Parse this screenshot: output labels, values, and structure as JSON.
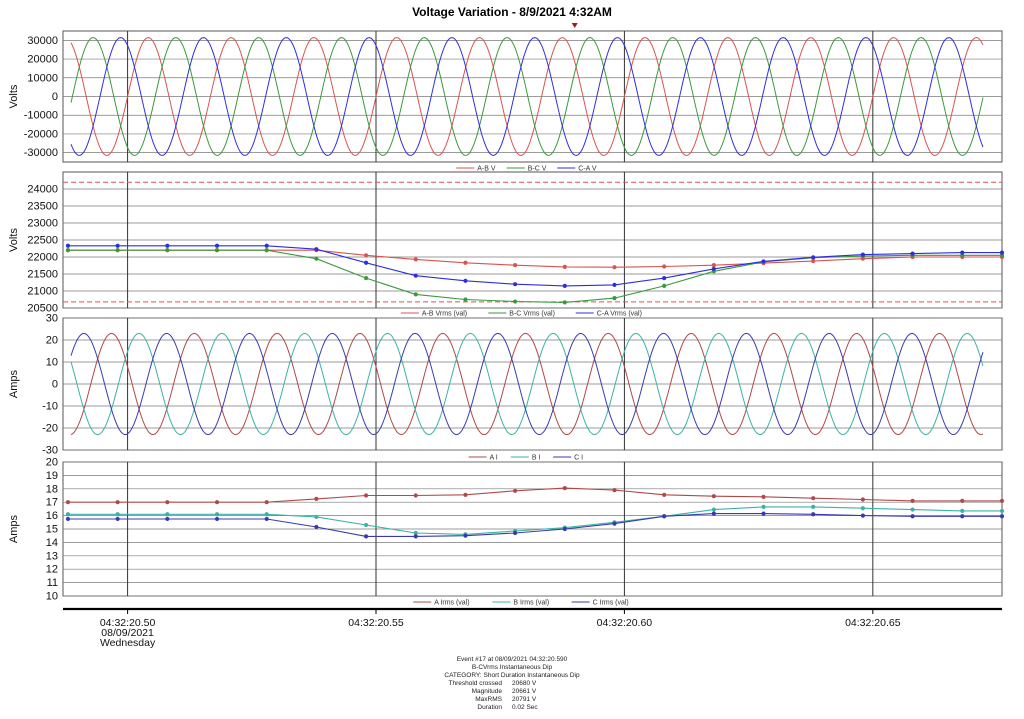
{
  "title": "Voltage Variation - 8/9/2021 4:32AM",
  "colors": {
    "red": "#d9534f",
    "green": "#3a9a3a",
    "blue": "#2e2ee0",
    "teal": "#3bb3a3",
    "darkred": "#b04848",
    "darkblue": "#3a3ab0"
  },
  "time_axis": {
    "range": [
      20.487,
      20.676
    ],
    "ticks": [
      {
        "t": 20.5,
        "lines": [
          "04:32:20.50",
          "08/09/2021",
          "Wednesday"
        ]
      },
      {
        "t": 20.55,
        "lines": [
          "04:32:20.55"
        ]
      },
      {
        "t": 20.6,
        "lines": [
          "04:32:20.60"
        ]
      },
      {
        "t": 20.65,
        "lines": [
          "04:32:20.65"
        ]
      }
    ],
    "trigger_t": 20.59
  },
  "chart_data": [
    {
      "type": "line",
      "ylabel": "Volts",
      "ylim": [
        -35000,
        35000
      ],
      "yticks": [
        -30000,
        -20000,
        -10000,
        0,
        10000,
        20000,
        30000
      ],
      "waveform": {
        "amplitude": 31500,
        "frequency_hz": 60
      },
      "series": [
        {
          "name": "A-B V",
          "color": "red",
          "phase_deg": 0
        },
        {
          "name": "B-C V",
          "color": "green",
          "phase_deg": -120
        },
        {
          "name": "C-A V",
          "color": "blue",
          "phase_deg": 120
        }
      ]
    },
    {
      "type": "line",
      "ylabel": "Volts",
      "ylim": [
        20500,
        24500
      ],
      "yticks": [
        20500,
        21000,
        21500,
        22000,
        22500,
        23000,
        23500,
        24000
      ],
      "thresholds": [
        24200,
        20680
      ],
      "x": [
        20.488,
        20.498,
        20.508,
        20.518,
        20.528,
        20.538,
        20.548,
        20.558,
        20.568,
        20.578,
        20.588,
        20.598,
        20.608,
        20.618,
        20.628,
        20.638,
        20.648,
        20.658,
        20.668,
        20.676
      ],
      "series": [
        {
          "name": "A-B Vrms (val)",
          "color": "red",
          "values": [
            22200,
            22200,
            22200,
            22200,
            22200,
            22200,
            22050,
            21930,
            21830,
            21760,
            21710,
            21700,
            21720,
            21760,
            21820,
            21880,
            21950,
            22000,
            22000,
            22000
          ]
        },
        {
          "name": "B-C Vrms (val)",
          "color": "green",
          "values": [
            22200,
            22200,
            22200,
            22200,
            22200,
            21950,
            21380,
            20900,
            20750,
            20690,
            20665,
            20790,
            21150,
            21580,
            21860,
            21980,
            22030,
            22050,
            22050,
            22050
          ]
        },
        {
          "name": "C-A Vrms (val)",
          "color": "blue",
          "values": [
            22330,
            22330,
            22330,
            22330,
            22330,
            22230,
            21830,
            21450,
            21300,
            21200,
            21150,
            21180,
            21380,
            21650,
            21870,
            21990,
            22070,
            22100,
            22130,
            22130
          ]
        }
      ]
    },
    {
      "type": "line",
      "ylabel": "Amps",
      "ylim": [
        -30,
        30
      ],
      "yticks": [
        -30,
        -20,
        -10,
        0,
        10,
        20,
        30
      ],
      "waveform": {
        "amplitude": 23,
        "frequency_hz": 60
      },
      "series": [
        {
          "name": "A I",
          "color": "darkred",
          "phase_deg": 160
        },
        {
          "name": "B I",
          "color": "teal",
          "phase_deg": 40
        },
        {
          "name": "C I",
          "color": "darkblue",
          "phase_deg": -80
        }
      ]
    },
    {
      "type": "line",
      "ylabel": "Amps",
      "ylim": [
        10,
        20
      ],
      "yticks": [
        10,
        11,
        12,
        13,
        14,
        15,
        16,
        17,
        18,
        19,
        20
      ],
      "x": [
        20.488,
        20.498,
        20.508,
        20.518,
        20.528,
        20.538,
        20.548,
        20.558,
        20.568,
        20.578,
        20.588,
        20.598,
        20.608,
        20.618,
        20.628,
        20.638,
        20.648,
        20.658,
        20.668,
        20.676
      ],
      "series": [
        {
          "name": "A Irms (val)",
          "color": "darkred",
          "values": [
            17.0,
            17.0,
            17.0,
            17.0,
            17.0,
            17.25,
            17.5,
            17.5,
            17.55,
            17.85,
            18.05,
            17.9,
            17.55,
            17.45,
            17.4,
            17.3,
            17.2,
            17.1,
            17.1,
            17.1
          ]
        },
        {
          "name": "B Irms (val)",
          "color": "teal",
          "values": [
            16.1,
            16.1,
            16.1,
            16.1,
            16.1,
            15.9,
            15.3,
            14.7,
            14.6,
            14.85,
            15.1,
            15.5,
            15.95,
            16.45,
            16.65,
            16.65,
            16.55,
            16.45,
            16.35,
            16.35
          ]
        },
        {
          "name": "C Irms (val)",
          "color": "darkblue",
          "values": [
            15.75,
            15.75,
            15.75,
            15.75,
            15.75,
            15.15,
            14.45,
            14.45,
            14.5,
            14.7,
            15.0,
            15.4,
            15.95,
            16.15,
            16.15,
            16.1,
            16.0,
            15.95,
            15.95,
            15.95
          ]
        }
      ]
    }
  ],
  "event_info": {
    "lines": [
      "Event #17 at 08/09/2021 04:32:20.590",
      "B-CVrms Instantaneous Dip",
      "CATEGORY: Short Duration Instantaneous Dip"
    ],
    "rows": [
      {
        "k": "Threshold crossed",
        "v": "20680 V"
      },
      {
        "k": "Magnitude",
        "v": "20661 V"
      },
      {
        "k": "MaxRMS",
        "v": "20791 V"
      },
      {
        "k": "Duration",
        "v": "0.02 Sec"
      }
    ]
  }
}
